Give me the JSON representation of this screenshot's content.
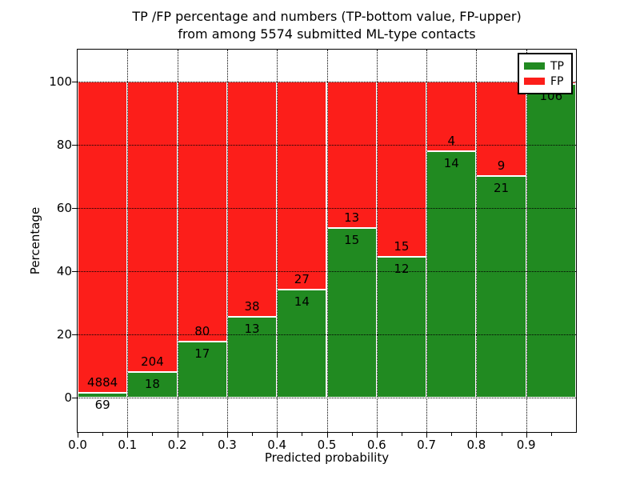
{
  "title": {
    "line1": "TP /FP percentage and numbers (TP-bottom value, FP-upper)",
    "line2": "from among 5574 submitted ML-type contacts"
  },
  "axes": {
    "x_label": "Predicted probability",
    "y_label": "Percentage",
    "x_ticks": [
      "0.0",
      "0.1",
      "0.2",
      "0.3",
      "0.4",
      "0.5",
      "0.6",
      "0.7",
      "0.8",
      "0.9"
    ],
    "y_ticks": [
      "0",
      "20",
      "40",
      "60",
      "80",
      "100"
    ],
    "x_lim": [
      0,
      1
    ],
    "y_lim": [
      -11,
      110
    ]
  },
  "legend": {
    "items": [
      {
        "label": "TP",
        "color": "#218a21"
      },
      {
        "label": "FP",
        "color": "#fc1e1a"
      }
    ]
  },
  "chart_data": {
    "type": "bar",
    "subtype": "stacked-100-percent",
    "title": "TP /FP percentage and numbers (TP-bottom value, FP-upper) from among 5574 submitted ML-type contacts",
    "xlabel": "Predicted probability",
    "ylabel": "Percentage",
    "categories": [
      "0.0-0.1",
      "0.1-0.2",
      "0.2-0.3",
      "0.3-0.4",
      "0.4-0.5",
      "0.5-0.6",
      "0.6-0.7",
      "0.7-0.8",
      "0.8-0.9",
      "0.9-1.0"
    ],
    "bin_width": 0.1,
    "series": [
      {
        "name": "TP",
        "color": "#218a21",
        "values": [
          69,
          18,
          17,
          13,
          14,
          15,
          12,
          14,
          21,
          106
        ]
      },
      {
        "name": "FP",
        "color": "#fc1e1a",
        "values": [
          4884,
          204,
          80,
          38,
          27,
          13,
          15,
          4,
          9,
          1
        ]
      }
    ],
    "total_contacts": 5574,
    "bars_normalized_to_percent": true,
    "count_labels_shown": true,
    "fp_label_hidden_at_index": 9,
    "ylim": [
      -11,
      110
    ],
    "xlim": [
      0,
      1
    ],
    "grid": "dotted, both axes, drawn over bars",
    "legend_position": "upper right"
  }
}
